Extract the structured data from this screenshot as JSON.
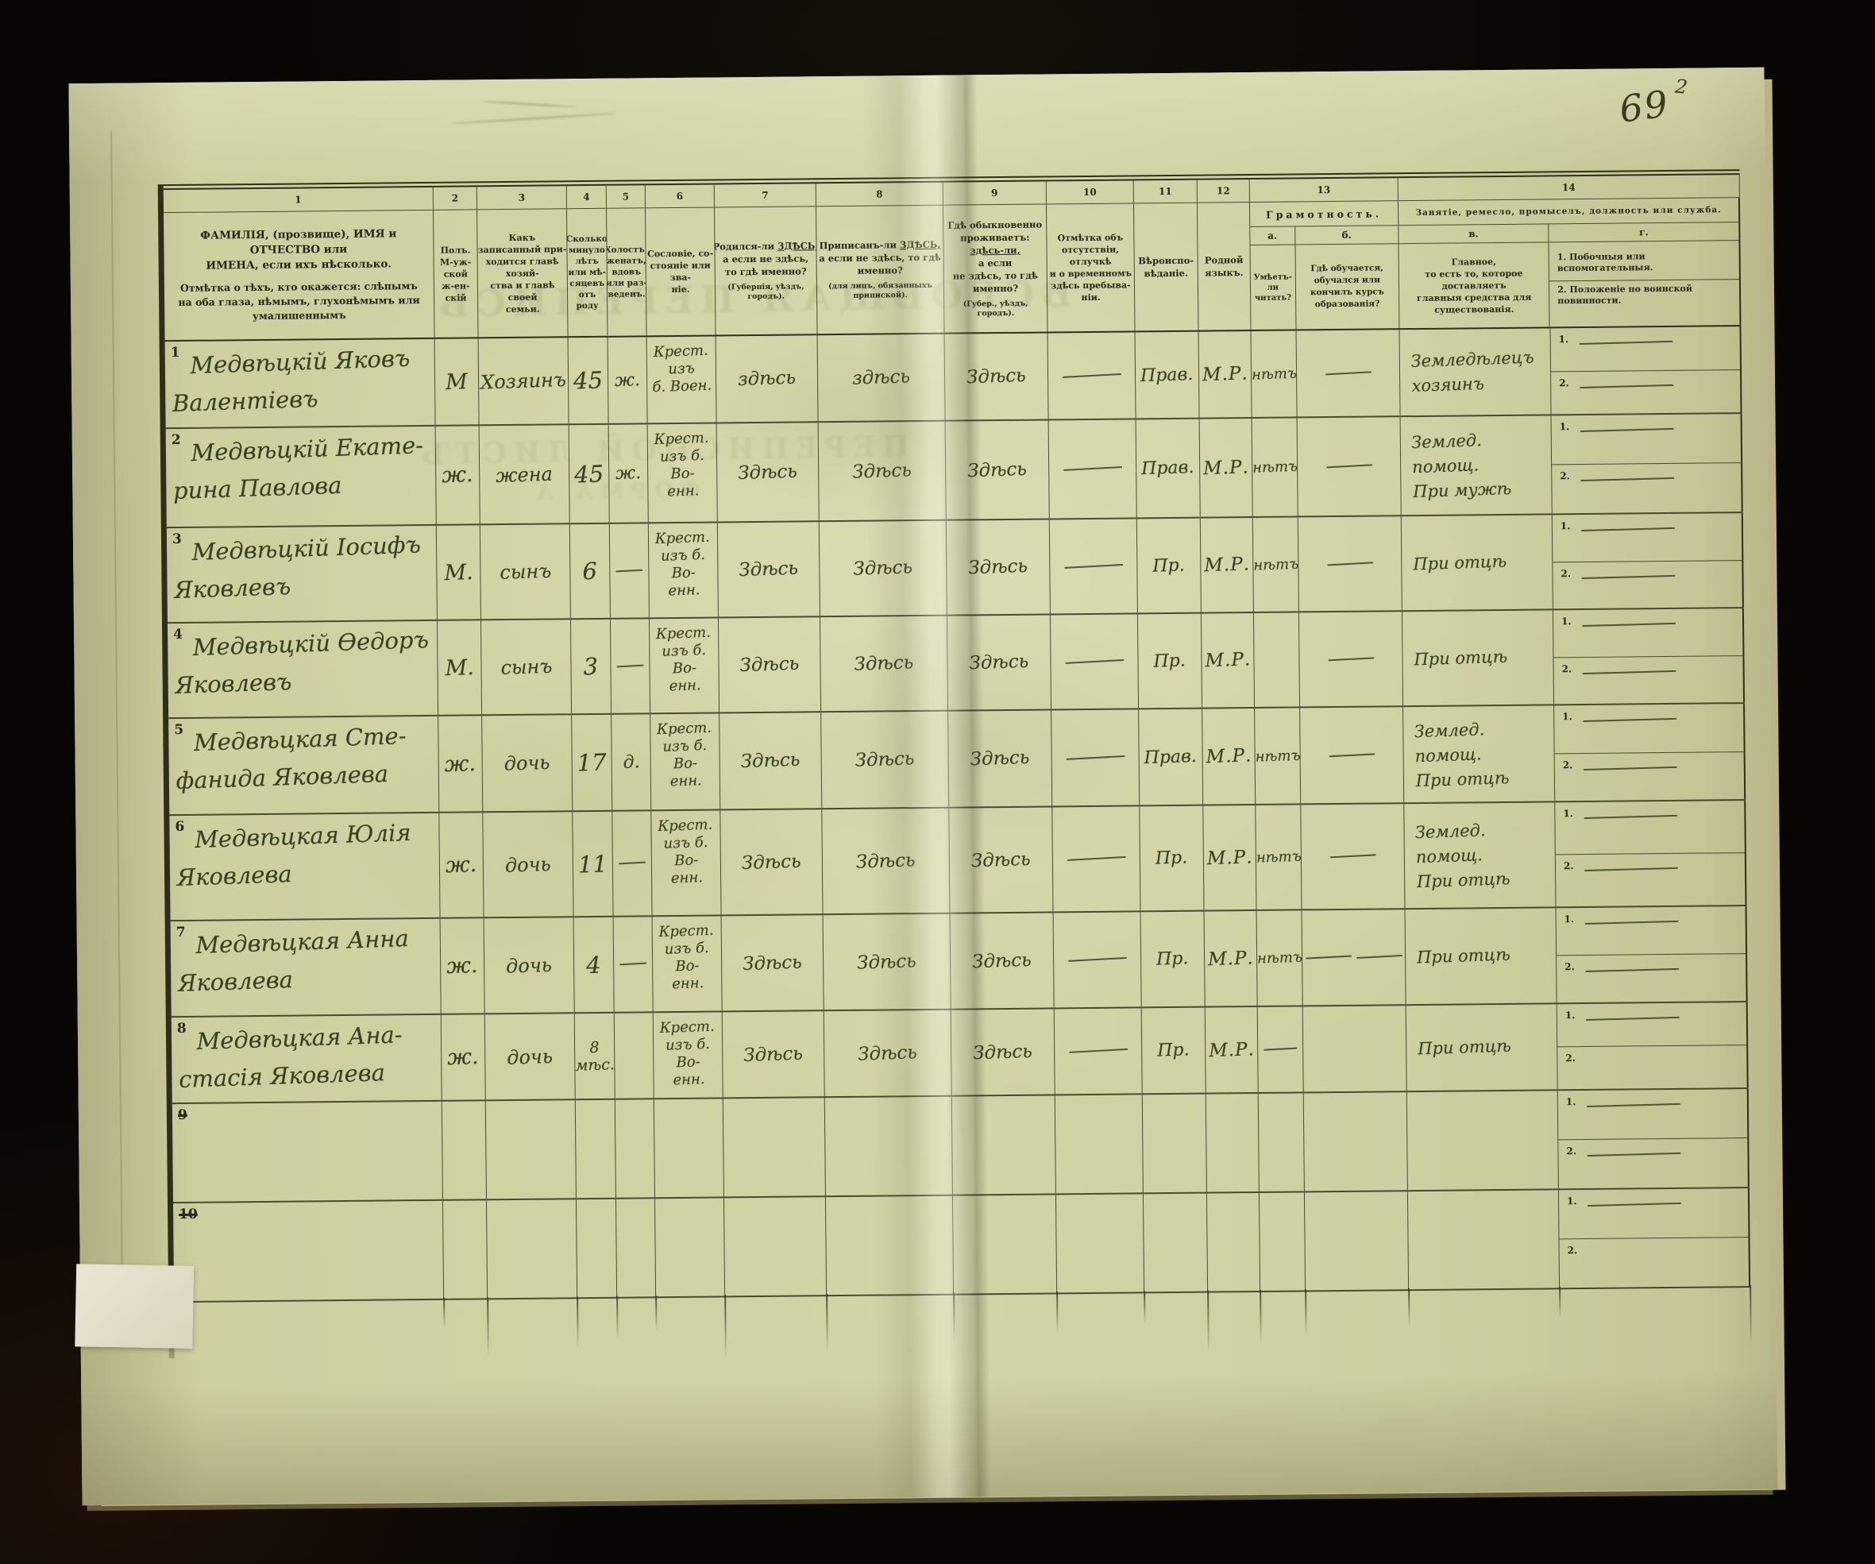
{
  "page": {
    "number": "69",
    "mark": "2"
  },
  "ghost_bleedthrough": {
    "g1": "ВСЕОБЩАЯ ПЕРЕПИСЬ",
    "g2": "ПЕРЕПИСНОЙ ЛИСТЪ",
    "g3": "ФОРМА А"
  },
  "header": {
    "numbers": [
      "1",
      "2",
      "3",
      "4",
      "5",
      "6",
      "7",
      "8",
      "9",
      "10",
      "11",
      "12",
      "13",
      "14"
    ],
    "c1a": "ФАМИЛІЯ, (прозвище), ИМЯ и ОТЧЕСТВО или\nИМЕНА, если ихъ нѣсколько.",
    "c1b": "Отмѣтка о тѣхъ, кто окажется: слѣпымъ\nна оба глаза, нѣмымъ, глухонѣмымъ или\nумалишеннымъ",
    "c2": "Полъ.\nМ-уж-\nской\nж-ен-\nскій",
    "c3": "Какъ записанный при-\nходится главѣ хозяй-\nства и главѣ своей\nсемьи.",
    "c4": "Сколько\nминуло\nлѣтъ\nили мѣ-\nсяцевъ\nотъ роду",
    "c5": "Холостъ,\nженатъ,\nвдовъ\nили раз-\nведенъ.",
    "c6": "Сословіе, со-\nстояніе или зва-\nніе.",
    "c7": {
      "lead": "Родился-ли",
      "kw": "ЗДѢСЬ,",
      "rest": "а если не здѣсь,\nто гдѣ именно?",
      "note": "(Губернія, уѣздъ, городъ)."
    },
    "c8": {
      "lead": "Приписанъ-ли",
      "kw": "ЗДѢСЬ,",
      "rest": "а если не здѣсь, то гдѣ\nименно?",
      "note": "(для лицъ, обязанныхъ\nприпиской)."
    },
    "c9": {
      "lead": "Гдѣ обыкновенно\nпроживаетъ:",
      "kw": "здѣсь-ли,",
      "rest": "а если\nне здѣсь, то гдѣ\nименно?",
      "note": "(Губер., уѣздъ, городъ)."
    },
    "c10": "Отмѣтка объ\nотсутствіи, отлучкѣ\nи о временномъ\nздѣсь пребыва-\nніи.",
    "c11": "Вѣроиспо-\nвѣданіе.",
    "c12": "Родной\nязыкъ.",
    "c13_title": "Грамотность.",
    "c13a_letter": "а.",
    "c13a": "Умѣетъ-\nли\nчитать?",
    "c13b_letter": "б.",
    "c13b": "Гдѣ обучается,\nобучался или\nкончилъ курсъ\nобразованія?",
    "c14_title": "Занятіе, ремесло, промыселъ, должность или служба.",
    "c14a_letter": "в.",
    "c14a": "Главное,\nто есть то, которое доставляетъ\nглавныя средства для существованія.",
    "c14b_letter": "г.",
    "c14b1": "1.  Побочныя или вспомогательныя.",
    "c14b2": "2.  Положеніе по воинской повинности."
  },
  "side_labels": [
    "1",
    "2"
  ],
  "rows": [
    {
      "num": "1",
      "struck": false,
      "name": [
        "Медвѣцкій Яковъ",
        "Валентіевъ"
      ],
      "sex": "М",
      "relation": "Хозяинъ",
      "age": "45",
      "marital": "ж.",
      "estate": [
        "Крест. изъ",
        "б. Воен."
      ],
      "born": "здѣсь",
      "registered": "здѣсь",
      "resides": "Здѣсь",
      "absence": "—",
      "faith": "Прав.",
      "language": "М.Р.",
      "reads": "нѣтъ",
      "educated": "—",
      "occupation": [
        "Земледѣлецъ",
        "хозяинъ"
      ],
      "side1": "—",
      "side2": "—"
    },
    {
      "num": "2",
      "struck": false,
      "name": [
        "Медвѣцкій Екате-",
        "рина Павлова"
      ],
      "sex": "ж.",
      "relation": "жена",
      "age": "45",
      "marital": "ж.",
      "estate": [
        "Крест.",
        "изъ б. Во-",
        "енн."
      ],
      "born": "Здѣсь",
      "registered": "Здѣсь",
      "resides": "Здѣсь",
      "absence": "—",
      "faith": "Прав.",
      "language": "М.Р.",
      "reads": "нѣтъ",
      "educated": "—",
      "occupation": [
        "Землед. помощ.",
        "При мужѣ"
      ],
      "side1": "—",
      "side2": "—"
    },
    {
      "num": "3",
      "struck": false,
      "name": [
        "Медвѣцкій Іосифъ",
        "Яковлевъ"
      ],
      "sex": "М.",
      "relation": "сынъ",
      "age": "6",
      "marital": "—",
      "estate": [
        "Крест.",
        "изъ б. Во-",
        "енн."
      ],
      "born": "Здѣсь",
      "registered": "Здѣсь",
      "resides": "Здѣсь",
      "absence": "—",
      "faith": "Пр.",
      "language": "М.Р.",
      "reads": "нѣтъ",
      "educated": "—",
      "occupation": [
        "При отцѣ"
      ],
      "side1": "—",
      "side2": "—"
    },
    {
      "num": "4",
      "struck": false,
      "name": [
        "Медвѣцкій Ѳедоръ",
        "Яковлевъ"
      ],
      "sex": "М.",
      "relation": "сынъ",
      "age": "3",
      "marital": "—",
      "estate": [
        "Крест.",
        "изъ б. Во-",
        "енн."
      ],
      "born": "Здѣсь",
      "registered": "Здѣсь",
      "resides": "Здѣсь",
      "absence": "—",
      "faith": "Пр.",
      "language": "М.Р.",
      "reads": "",
      "educated": "—",
      "occupation": [
        "При отцѣ"
      ],
      "side1": "—",
      "side2": "—"
    },
    {
      "num": "5",
      "struck": false,
      "name": [
        "Медвѣцкая Сте-",
        "фанида Яковлева"
      ],
      "sex": "ж.",
      "relation": "дочь",
      "age": "17",
      "marital": "д.",
      "estate": [
        "Крест.",
        "изъ б. Во-",
        "енн."
      ],
      "born": "Здѣсь",
      "registered": "Здѣсь",
      "resides": "Здѣсь",
      "absence": "—",
      "faith": "Прав.",
      "language": "М.Р.",
      "reads": "нѣтъ",
      "educated": "—",
      "occupation": [
        "Землед. помощ.",
        "При отцѣ"
      ],
      "side1": "—",
      "side2": "—"
    },
    {
      "num": "6",
      "struck": false,
      "name": [
        "Медвѣцкая Юлія",
        "Яковлева"
      ],
      "sex": "ж.",
      "relation": "дочь",
      "age": "11",
      "marital": "—",
      "estate": [
        "Крест.",
        "изъ б. Во-",
        "енн."
      ],
      "born": "Здѣсь",
      "registered": "Здѣсь",
      "resides": "Здѣсь",
      "absence": "—",
      "faith": "Пр.",
      "language": "М.Р.",
      "reads": "нѣтъ",
      "educated": "—",
      "occupation": [
        "Землед. помощ.",
        "При отцѣ"
      ],
      "side1": "—",
      "side2": "—"
    },
    {
      "num": "7",
      "struck": false,
      "name": [
        "Медвѣцкая Анна",
        "Яковлева"
      ],
      "sex": "ж.",
      "relation": "дочь",
      "age": "4",
      "marital": "—",
      "estate": [
        "Крест.",
        "изъ б. Во-",
        "енн."
      ],
      "born": "Здѣсь",
      "registered": "Здѣсь",
      "resides": "Здѣсь",
      "absence": "—",
      "faith": "Пр.",
      "language": "М.Р.",
      "reads": "нѣтъ",
      "educated": "— —",
      "occupation": [
        "При отцѣ"
      ],
      "side1": "—",
      "side2": "—"
    },
    {
      "num": "8",
      "struck": false,
      "name": [
        "Медвѣцкая Ана-",
        "стасія Яковлева"
      ],
      "sex": "ж.",
      "relation": "дочь",
      "age": "8 мѣс.",
      "marital": "",
      "estate": [
        "Крест.",
        "изъ б. Во-",
        "енн."
      ],
      "born": "Здѣсь",
      "registered": "Здѣсь",
      "resides": "Здѣсь",
      "absence": "—",
      "faith": "Пр.",
      "language": "М.Р.",
      "reads": "—",
      "educated": "",
      "occupation": [
        "При отцѣ"
      ],
      "side1": "—",
      "side2": ""
    },
    {
      "num": "9",
      "struck": true,
      "name": null,
      "sex": "",
      "relation": "",
      "age": "",
      "marital": "",
      "estate": null,
      "born": "",
      "registered": "",
      "resides": "",
      "absence": "",
      "faith": "",
      "language": "",
      "reads": "",
      "educated": "",
      "occupation": null,
      "side1": "—",
      "side2": "—"
    },
    {
      "num": "10",
      "struck": true,
      "name": null,
      "sex": "",
      "relation": "",
      "age": "",
      "marital": "",
      "estate": null,
      "born": "",
      "registered": "",
      "resides": "",
      "absence": "",
      "faith": "",
      "language": "",
      "reads": "",
      "educated": "",
      "occupation": null,
      "side1": "—",
      "side2": ""
    }
  ]
}
